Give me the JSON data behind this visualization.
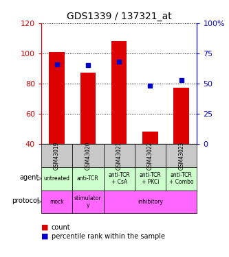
{
  "title": "GDS1339 / 137321_at",
  "categories": [
    "GSM43019",
    "GSM43020",
    "GSM43021",
    "GSM43022",
    "GSM43023"
  ],
  "counts": [
    101,
    87,
    108,
    48,
    77
  ],
  "percentile_ranks": [
    66,
    65,
    68,
    48,
    53
  ],
  "ylim_left": [
    40,
    120
  ],
  "ylim_right": [
    0,
    100
  ],
  "yticks_left": [
    40,
    60,
    80,
    100,
    120
  ],
  "yticks_right": [
    0,
    25,
    50,
    75,
    100
  ],
  "ytick_labels_right": [
    "0",
    "25",
    "50",
    "75",
    "100%"
  ],
  "bar_color": "#dd0000",
  "marker_color": "#0000cc",
  "agent_labels": [
    "untreated",
    "anti-TCR",
    "anti-TCR\n+ CsA",
    "anti-TCR\n+ PKCi",
    "anti-TCR\n+ Combo"
  ],
  "protocol_spans": [
    [
      0,
      0,
      "mock"
    ],
    [
      1,
      1,
      "stimulator\ny"
    ],
    [
      2,
      4,
      "inhibitory"
    ]
  ],
  "protocol_bg": "#ff66ff",
  "agent_bg": "#ccffcc",
  "gsm_bg": "#c8c8c8",
  "left_axis_color": "#cc0000",
  "right_axis_color": "#0000cc",
  "bar_width": 0.5,
  "grid_color": "black",
  "title_fontsize": 10
}
